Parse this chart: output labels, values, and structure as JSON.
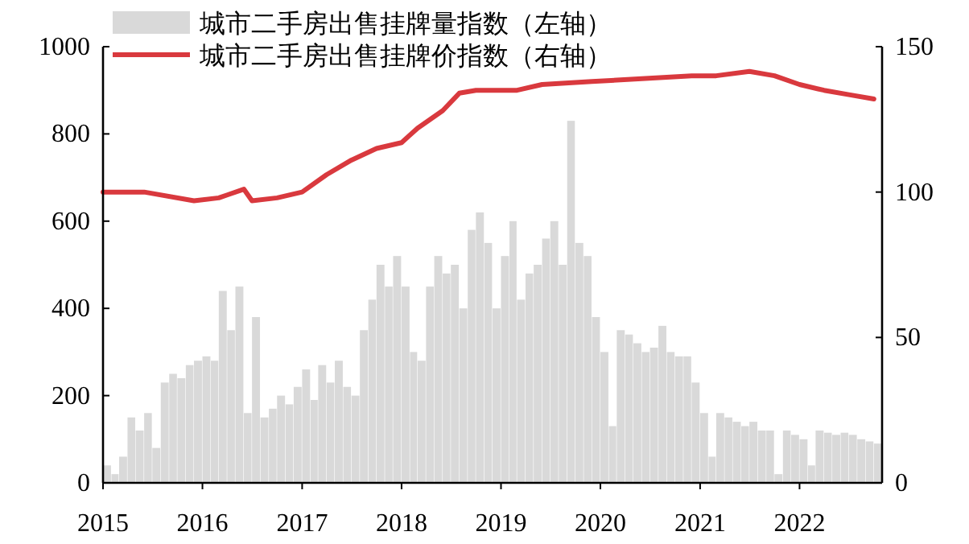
{
  "chart_data": {
    "type": "bar",
    "x": [
      "2015-01",
      "2015-02",
      "2015-03",
      "2015-04",
      "2015-05",
      "2015-06",
      "2015-07",
      "2015-08",
      "2015-09",
      "2015-10",
      "2015-11",
      "2015-12",
      "2016-01",
      "2016-02",
      "2016-03",
      "2016-04",
      "2016-05",
      "2016-06",
      "2016-07",
      "2016-08",
      "2016-09",
      "2016-10",
      "2016-11",
      "2016-12",
      "2017-01",
      "2017-02",
      "2017-03",
      "2017-04",
      "2017-05",
      "2017-06",
      "2017-07",
      "2017-08",
      "2017-09",
      "2017-10",
      "2017-11",
      "2017-12",
      "2018-01",
      "2018-02",
      "2018-03",
      "2018-04",
      "2018-05",
      "2018-06",
      "2018-07",
      "2018-08",
      "2018-09",
      "2018-10",
      "2018-11",
      "2018-12",
      "2019-01",
      "2019-02",
      "2019-03",
      "2019-04",
      "2019-05",
      "2019-06",
      "2019-07",
      "2019-08",
      "2019-09",
      "2019-10",
      "2019-11",
      "2019-12",
      "2020-01",
      "2020-02",
      "2020-03",
      "2020-04",
      "2020-05",
      "2020-06",
      "2020-07",
      "2020-08",
      "2020-09",
      "2020-10",
      "2020-11",
      "2020-12",
      "2021-01",
      "2021-02",
      "2021-03",
      "2021-04",
      "2021-05",
      "2021-06",
      "2021-07",
      "2021-08",
      "2021-09",
      "2021-10",
      "2021-11",
      "2021-12",
      "2022-01",
      "2022-02",
      "2022-03",
      "2022-04",
      "2022-05",
      "2022-06",
      "2022-07",
      "2022-08",
      "2022-09",
      "2022-10"
    ],
    "series": [
      {
        "name": "城市二手房出售挂牌量指数（左轴）",
        "color": "#d9d9d9",
        "values": [
          40,
          20,
          60,
          150,
          120,
          160,
          80,
          230,
          250,
          240,
          270,
          280,
          290,
          280,
          440,
          350,
          450,
          160,
          380,
          150,
          170,
          200,
          180,
          220,
          260,
          190,
          270,
          230,
          280,
          220,
          200,
          350,
          420,
          500,
          450,
          520,
          450,
          300,
          280,
          450,
          520,
          480,
          500,
          400,
          580,
          620,
          550,
          400,
          520,
          600,
          420,
          480,
          500,
          560,
          600,
          500,
          830,
          550,
          520,
          380,
          300,
          130,
          350,
          340,
          320,
          300,
          310,
          360,
          300,
          290,
          290,
          230,
          160,
          60,
          160,
          150,
          140,
          130,
          140,
          120,
          120,
          20,
          120,
          110,
          100,
          40,
          120,
          115,
          110,
          115,
          110,
          100,
          95,
          90
        ]
      },
      {
        "name": "城市二手房出售挂牌价指数（右轴）",
        "type": "line",
        "axis": "y2",
        "color": "#d9393e",
        "x": [
          "2015-01",
          "2015-06",
          "2015-12",
          "2016-03",
          "2016-04",
          "2016-06",
          "2016-07",
          "2016-10",
          "2017-01",
          "2017-04",
          "2017-07",
          "2017-10",
          "2018-01",
          "2018-03",
          "2018-06",
          "2018-08",
          "2018-10",
          "2018-12",
          "2019-03",
          "2019-06",
          "2019-12",
          "2020-06",
          "2020-12",
          "2021-03",
          "2021-07",
          "2021-10",
          "2022-01",
          "2022-04",
          "2022-07",
          "2022-10"
        ],
        "values": [
          100,
          100,
          97,
          98,
          99,
          101,
          97,
          98,
          100,
          106,
          111,
          115,
          117,
          122,
          128,
          134,
          135,
          135,
          135,
          137,
          138,
          139,
          140,
          140,
          141.5,
          140,
          137,
          135,
          133.5,
          132
        ]
      }
    ],
    "xlim": [
      "2015-01-01",
      "2022-10-31"
    ],
    "xticks": [
      {
        "value": "2015",
        "label": "2015"
      },
      {
        "value": "2016",
        "label": "2016"
      },
      {
        "value": "2017",
        "label": "2017"
      },
      {
        "value": "2018",
        "label": "2018"
      },
      {
        "value": "2019",
        "label": "2019"
      },
      {
        "value": "2020",
        "label": "2020"
      },
      {
        "value": "2021",
        "label": "2021"
      },
      {
        "value": "2022",
        "label": "2022"
      }
    ],
    "ylim": [
      0,
      1000
    ],
    "yticks": [
      0,
      200,
      400,
      600,
      800,
      1000
    ],
    "y2lim": [
      0,
      150
    ],
    "y2ticks": [
      0,
      50,
      100,
      150
    ],
    "legend": "top left",
    "grid": false
  }
}
